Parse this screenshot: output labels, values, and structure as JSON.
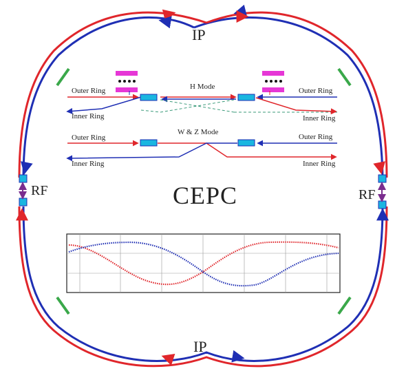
{
  "labels": {
    "ip_top": "IP",
    "ip_bottom": "IP",
    "rf_left": "RF",
    "rf_right": "RF",
    "center_title": "CEPC",
    "h_mode": "H Mode",
    "wz_mode": "W & Z Mode",
    "outer_ring": "Outer Ring",
    "inner_ring": "Inner Ring"
  },
  "colors": {
    "red": "#e0262b",
    "blue": "#1f2fb4",
    "green": "#3aa84a",
    "cyan": "#1ab6e0",
    "magenta": "#e637d6",
    "purple": "#7a2d8e",
    "dashed": "#3a9a7a"
  }
}
